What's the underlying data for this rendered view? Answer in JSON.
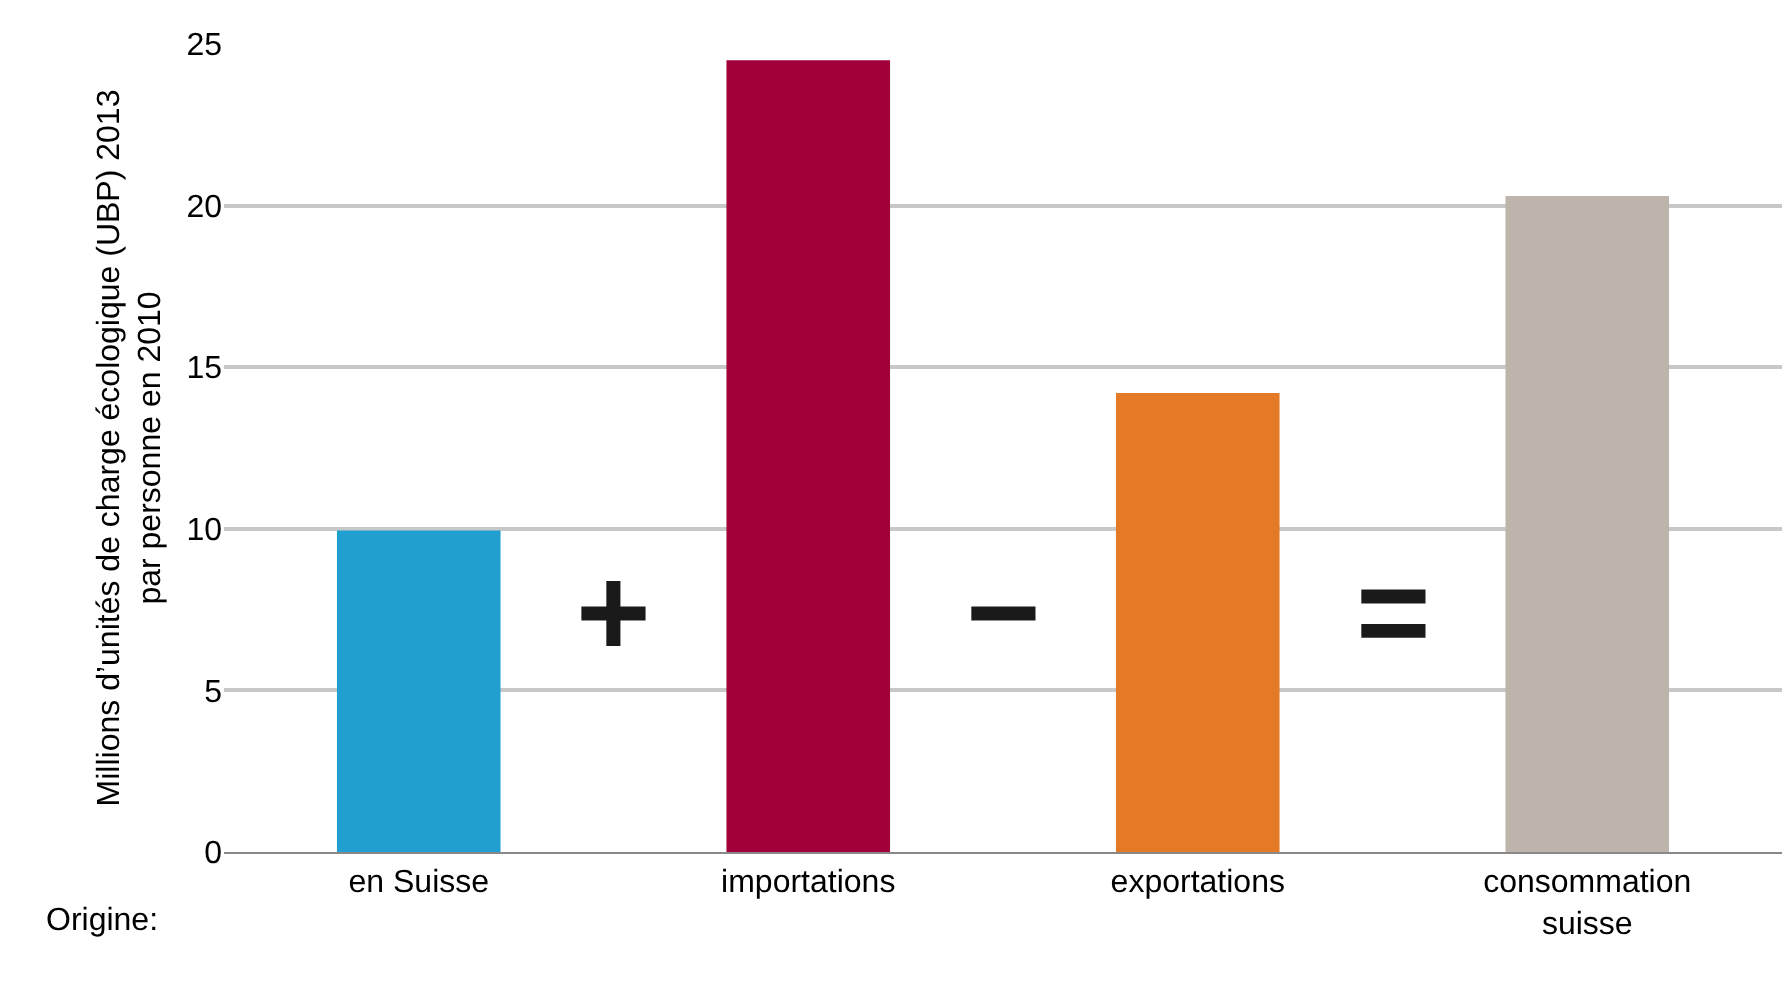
{
  "chart_data": {
    "type": "bar",
    "categories": [
      "en Suisse",
      "importations",
      "exportations",
      "consommation\nsuisse"
    ],
    "values": [
      9.95,
      24.5,
      14.2,
      20.3
    ],
    "colors": [
      "#229fd1",
      "#a1003b",
      "#e47a26",
      "#bdb4ac"
    ],
    "ylabel": "Millions d’unités de charge écologique (UBP) 2013\npar personne en 2010",
    "ylim": [
      0,
      25
    ],
    "yticks": [
      0,
      5,
      10,
      15,
      20,
      25
    ],
    "grid": "y",
    "annotations": [
      "+",
      "−",
      "=",
      "Origine:"
    ]
  }
}
